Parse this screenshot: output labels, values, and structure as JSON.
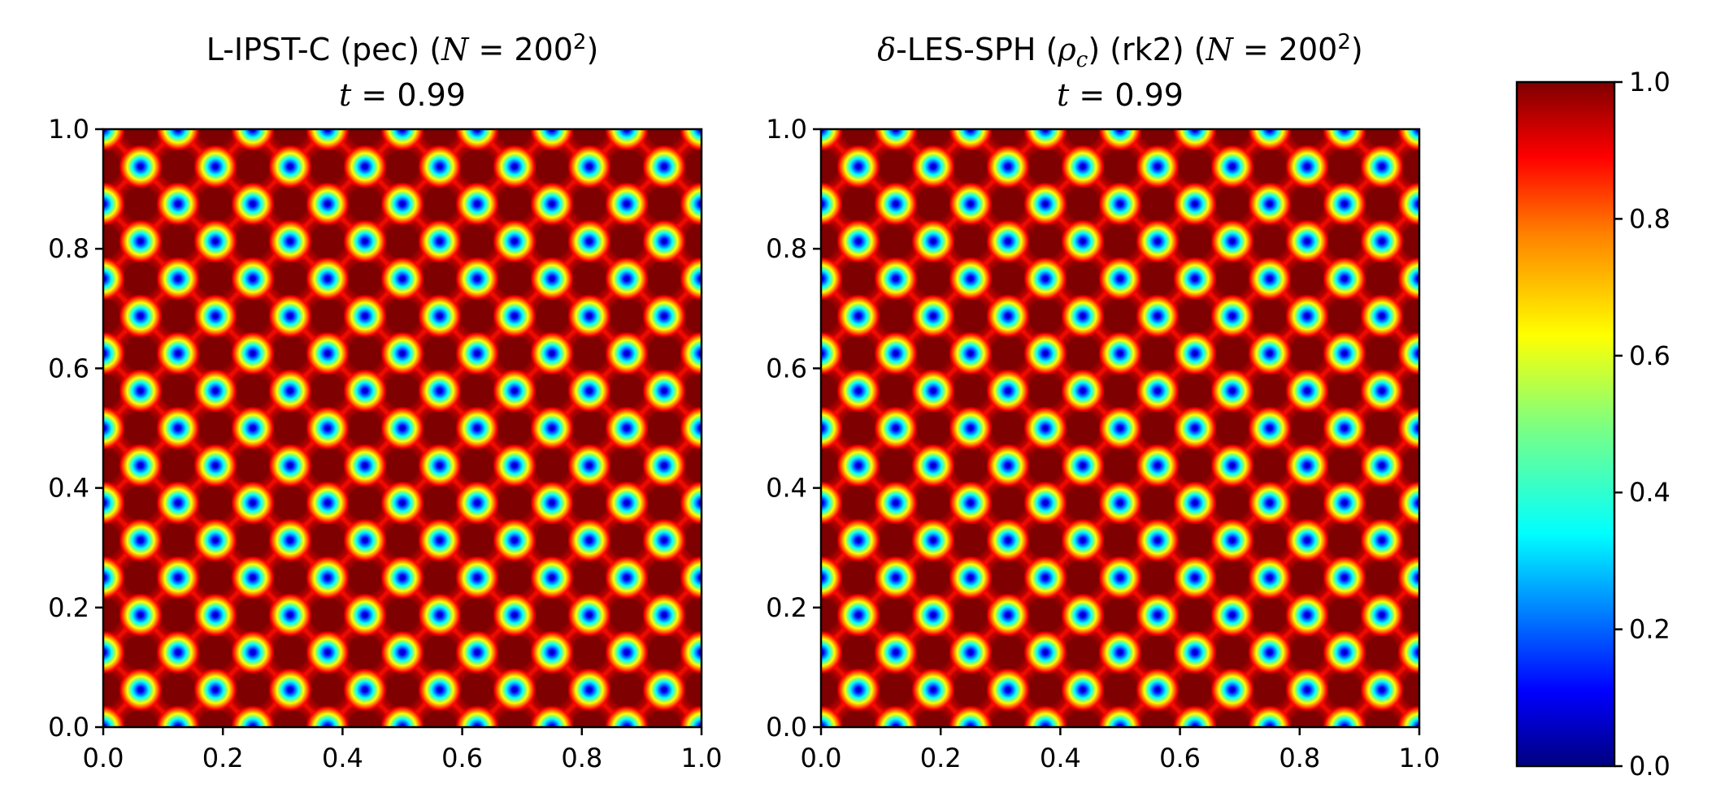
{
  "figure": {
    "colormap": "jet",
    "colors": {
      "jet": [
        "#00007f",
        "#0000ff",
        "#007fff",
        "#00ffff",
        "#7fff7f",
        "#ffff00",
        "#ff7f00",
        "#ff0000",
        "#7f0000"
      ],
      "axis": "#000000",
      "background": "#ffffff"
    }
  },
  "chart_data": [
    {
      "type": "heatmap",
      "title": {
        "name": "L-IPST-C (pec) (",
        "var_N": "N",
        "eq_N": " = 200",
        "sup": "2",
        "close": ")",
        "var_t": "t",
        "eq_t": " = 0.99"
      },
      "xlim": [
        0.0,
        1.0
      ],
      "ylim": [
        0.0,
        1.0
      ],
      "xticks": [
        "0.0",
        "0.2",
        "0.4",
        "0.6",
        "0.8",
        "1.0"
      ],
      "yticks": [
        "0.0",
        "0.2",
        "0.4",
        "0.6",
        "0.8",
        "1.0"
      ],
      "xlabel": "",
      "ylabel": "",
      "grid": false,
      "field": {
        "description": "periodic field value in [0,1]",
        "cells_per_axis": 16,
        "max": 1.0,
        "min": 0.0
      }
    },
    {
      "type": "heatmap",
      "title": {
        "name_pre": "",
        "var_delta": "δ",
        "name": "-LES-SPH (",
        "var_rho": "ρ",
        "sub_c": "c",
        "name_post": ") (rk2) (",
        "var_N": "N",
        "eq_N": " = 200",
        "sup": "2",
        "close": ")",
        "var_t": "t",
        "eq_t": " = 0.99"
      },
      "xlim": [
        0.0,
        1.0
      ],
      "ylim": [
        0.0,
        1.0
      ],
      "xticks": [
        "0.0",
        "0.2",
        "0.4",
        "0.6",
        "0.8",
        "1.0"
      ],
      "yticks": [
        "0.0",
        "0.2",
        "0.4",
        "0.6",
        "0.8",
        "1.0"
      ],
      "xlabel": "",
      "ylabel": "",
      "grid": false,
      "field": {
        "description": "periodic field value in [0,1]",
        "cells_per_axis": 16,
        "max": 1.0,
        "min": 0.0
      }
    }
  ],
  "colorbar": {
    "range": [
      0.0,
      1.0
    ],
    "ticks": [
      "0.0",
      "0.2",
      "0.4",
      "0.6",
      "0.8",
      "1.0"
    ]
  }
}
